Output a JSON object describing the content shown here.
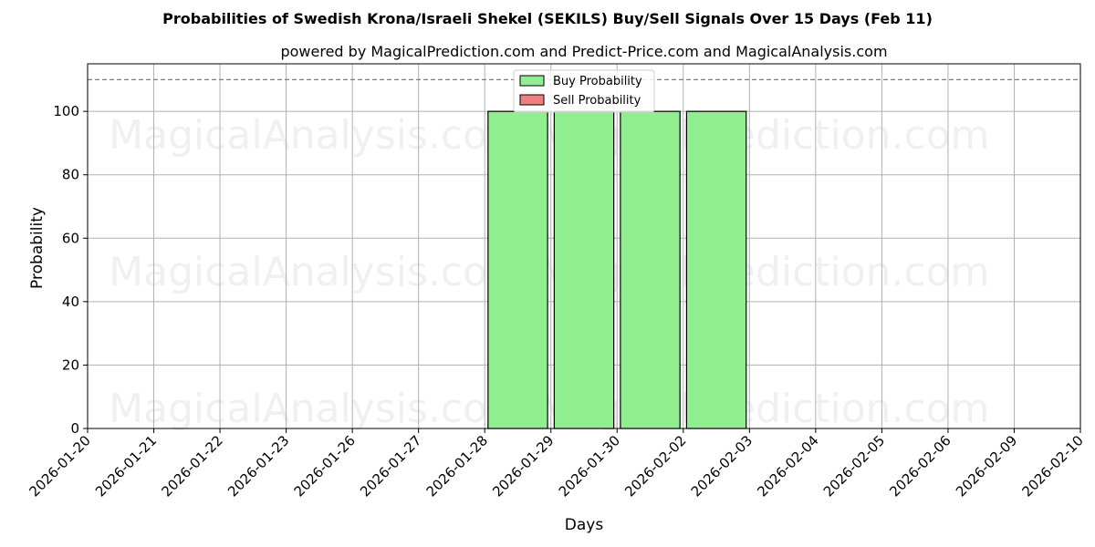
{
  "chart_data": {
    "type": "bar",
    "title": "Probabilities of Swedish Krona/Israeli Shekel (SEKILS) Buy/Sell Signals Over 15 Days (Feb 11)",
    "subtitle": "powered by MagicalPrediction.com and Predict-Price.com and MagicalAnalysis.com",
    "xlabel": "Days",
    "ylabel": "Probability",
    "ylim": [
      0,
      115
    ],
    "yticks": [
      0,
      20,
      40,
      60,
      80,
      100
    ],
    "reference_line": 110,
    "grid": true,
    "legend_position": "top-center",
    "categories": [
      "2026-01-20",
      "2026-01-21",
      "2026-01-22",
      "2026-01-23",
      "2026-01-26",
      "2026-01-27",
      "2026-01-28",
      "2026-01-29",
      "2026-01-30",
      "2026-02-02",
      "2026-02-03",
      "2026-02-04",
      "2026-02-05",
      "2026-02-06",
      "2026-02-09",
      "2026-02-10"
    ],
    "series": [
      {
        "name": "Buy Probability",
        "color": "#90ee90",
        "values": [
          0,
          0,
          0,
          0,
          0,
          0,
          100,
          100,
          100,
          100,
          0,
          0,
          0,
          0,
          0,
          0
        ]
      },
      {
        "name": "Sell Probability",
        "color": "#f08080",
        "values": [
          0,
          0,
          0,
          0,
          0,
          0,
          0,
          0,
          0,
          0,
          0,
          0,
          0,
          0,
          0,
          0
        ]
      }
    ],
    "watermarks": [
      "MagicalAnalysis.com",
      "MagicalPrediction.com"
    ]
  }
}
